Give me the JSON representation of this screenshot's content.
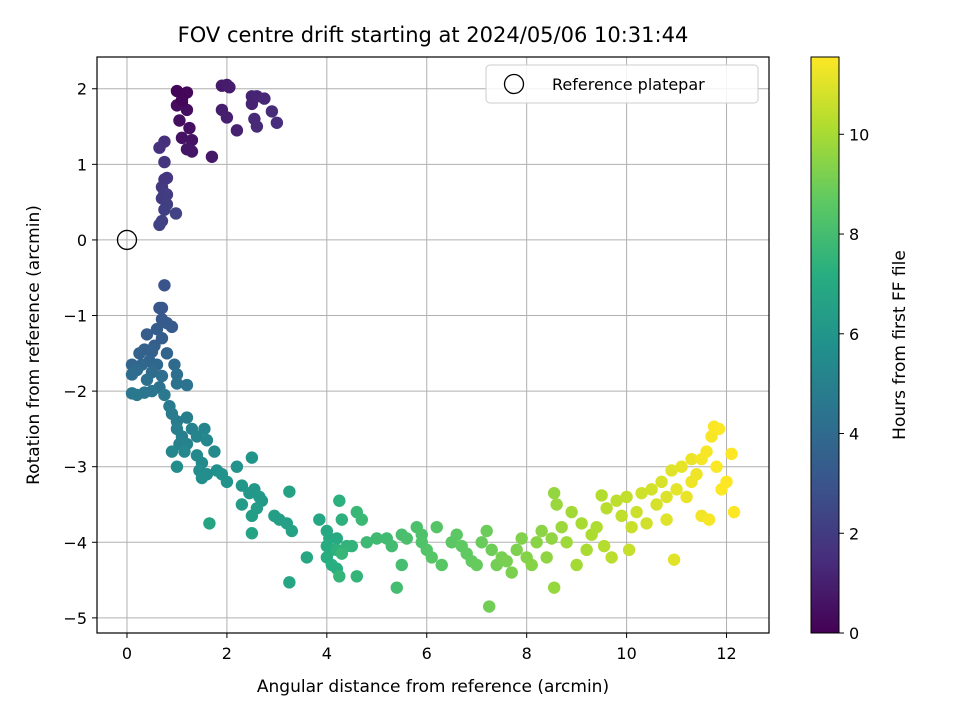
{
  "chart_data": {
    "type": "scatter",
    "title": "FOV centre drift starting at 2024/05/06 10:31:44",
    "xlabel": "Angular distance from reference (arcmin)",
    "ylabel": "Rotation from reference (arcmin)",
    "colorbar_label": "Hours from first FF file",
    "xlim": [
      -0.6,
      12.85
    ],
    "ylim": [
      -5.2,
      2.42
    ],
    "x_ticks": [
      0,
      2,
      4,
      6,
      8,
      10,
      12
    ],
    "y_ticks": [
      -5,
      -4,
      -3,
      -2,
      -1,
      0,
      1,
      2
    ],
    "x_tick_labels": [
      "0",
      "2",
      "4",
      "6",
      "8",
      "10",
      "12"
    ],
    "y_tick_labels": [
      "−5",
      "−4",
      "−3",
      "−2",
      "−1",
      "0",
      "1",
      "2"
    ],
    "colorbar_range": [
      0,
      11.55
    ],
    "colorbar_ticks": [
      0,
      2,
      4,
      6,
      8,
      10
    ],
    "colorbar_tick_labels": [
      "0",
      "2",
      "4",
      "6",
      "8",
      "10"
    ],
    "colormap": "viridis",
    "grid": true,
    "legend": {
      "placement": "top-right",
      "entries": [
        "Reference platepar"
      ]
    },
    "reference": {
      "name": "Reference platepar",
      "x": 0,
      "y": 0
    },
    "points": [
      [
        1.0,
        1.97,
        0.1
      ],
      [
        1.2,
        1.95,
        0.2
      ],
      [
        1.1,
        1.82,
        0.3
      ],
      [
        1.0,
        1.78,
        0.35
      ],
      [
        1.2,
        1.72,
        0.4
      ],
      [
        1.05,
        1.58,
        0.45
      ],
      [
        1.25,
        1.48,
        0.5
      ],
      [
        1.1,
        1.35,
        0.55
      ],
      [
        1.3,
        1.32,
        0.6
      ],
      [
        1.2,
        1.2,
        0.65
      ],
      [
        1.3,
        1.17,
        0.7
      ],
      [
        1.7,
        1.1,
        0.75
      ],
      [
        1.9,
        2.04,
        0.8
      ],
      [
        2.0,
        2.05,
        0.85
      ],
      [
        2.05,
        2.02,
        0.9
      ],
      [
        1.9,
        1.72,
        0.95
      ],
      [
        2.0,
        1.62,
        1.0
      ],
      [
        2.2,
        1.45,
        1.05
      ],
      [
        2.5,
        1.9,
        1.1
      ],
      [
        2.5,
        1.8,
        1.15
      ],
      [
        2.6,
        1.9,
        1.2
      ],
      [
        2.75,
        1.87,
        1.25
      ],
      [
        2.55,
        1.6,
        1.3
      ],
      [
        2.6,
        1.5,
        1.35
      ],
      [
        2.9,
        1.7,
        1.4
      ],
      [
        3.0,
        1.55,
        1.45
      ],
      [
        1.1,
        1.85,
        0.15
      ],
      [
        0.75,
        1.3,
        1.55
      ],
      [
        0.65,
        1.22,
        1.6
      ],
      [
        0.75,
        1.03,
        1.7
      ],
      [
        0.75,
        0.8,
        1.8
      ],
      [
        0.8,
        0.82,
        1.85
      ],
      [
        0.7,
        0.7,
        1.9
      ],
      [
        0.75,
        0.62,
        1.95
      ],
      [
        0.7,
        0.55,
        2.0
      ],
      [
        0.8,
        0.6,
        2.05
      ],
      [
        0.8,
        0.47,
        2.1
      ],
      [
        0.75,
        0.4,
        2.15
      ],
      [
        0.7,
        0.25,
        2.2
      ],
      [
        0.65,
        0.2,
        2.25
      ],
      [
        0.98,
        0.35,
        2.3
      ],
      [
        0.75,
        -0.6,
        3.0
      ],
      [
        0.65,
        -0.9,
        3.1
      ],
      [
        0.7,
        -0.9,
        3.15
      ],
      [
        0.7,
        -1.05,
        3.2
      ],
      [
        0.8,
        -1.1,
        3.25
      ],
      [
        0.9,
        -1.15,
        3.3
      ],
      [
        0.6,
        -1.18,
        3.35
      ],
      [
        0.4,
        -1.25,
        3.4
      ],
      [
        0.7,
        -1.3,
        3.45
      ],
      [
        0.55,
        -1.4,
        3.5
      ],
      [
        0.35,
        -1.45,
        3.55
      ],
      [
        0.5,
        -1.48,
        3.6
      ],
      [
        0.25,
        -1.5,
        3.65
      ],
      [
        0.8,
        -1.5,
        3.7
      ],
      [
        0.45,
        -1.6,
        3.75
      ],
      [
        0.1,
        -1.65,
        3.8
      ],
      [
        0.3,
        -1.65,
        3.85
      ],
      [
        0.6,
        -1.65,
        3.9
      ],
      [
        0.95,
        -1.65,
        3.95
      ],
      [
        0.2,
        -1.72,
        4.0
      ],
      [
        0.5,
        -1.75,
        4.05
      ],
      [
        0.1,
        -1.78,
        4.1
      ],
      [
        0.7,
        -1.8,
        4.15
      ],
      [
        1.0,
        -1.78,
        4.2
      ],
      [
        0.4,
        -1.85,
        4.25
      ],
      [
        0.65,
        -1.95,
        4.3
      ],
      [
        1.0,
        -1.9,
        4.35
      ],
      [
        1.2,
        -1.92,
        4.4
      ],
      [
        0.5,
        -2.0,
        4.45
      ],
      [
        0.35,
        -2.02,
        4.5
      ],
      [
        0.1,
        -2.03,
        4.55
      ],
      [
        0.2,
        -2.05,
        4.6
      ],
      [
        0.75,
        -2.05,
        4.65
      ],
      [
        0.85,
        -2.2,
        4.7
      ],
      [
        0.9,
        -2.3,
        4.75
      ],
      [
        1.0,
        -2.4,
        4.8
      ],
      [
        1.2,
        -2.35,
        4.85
      ],
      [
        1.0,
        -2.5,
        4.9
      ],
      [
        1.1,
        -2.6,
        4.95
      ],
      [
        1.3,
        -2.5,
        5.0
      ],
      [
        1.05,
        -2.7,
        5.05
      ],
      [
        1.2,
        -2.7,
        5.1
      ],
      [
        1.4,
        -2.6,
        5.15
      ],
      [
        1.55,
        -2.5,
        5.2
      ],
      [
        1.6,
        -2.65,
        5.25
      ],
      [
        0.9,
        -2.8,
        5.3
      ],
      [
        1.15,
        -2.8,
        5.35
      ],
      [
        1.4,
        -2.85,
        5.4
      ],
      [
        1.5,
        -2.95,
        5.45
      ],
      [
        1.75,
        -2.8,
        5.5
      ],
      [
        1.45,
        -3.05,
        5.55
      ],
      [
        1.6,
        -3.1,
        5.6
      ],
      [
        1.0,
        -3.0,
        5.65
      ],
      [
        1.5,
        -3.15,
        5.7
      ],
      [
        1.8,
        -3.05,
        5.75
      ],
      [
        1.9,
        -3.1,
        5.8
      ],
      [
        2.0,
        -3.2,
        5.85
      ],
      [
        2.2,
        -3.0,
        5.9
      ],
      [
        2.5,
        -2.88,
        5.95
      ],
      [
        2.3,
        -3.25,
        6.0
      ],
      [
        2.45,
        -3.35,
        6.05
      ],
      [
        2.55,
        -3.3,
        6.1
      ],
      [
        2.65,
        -3.4,
        6.15
      ],
      [
        2.7,
        -3.45,
        6.2
      ],
      [
        2.3,
        -3.5,
        6.25
      ],
      [
        2.6,
        -3.55,
        6.3
      ],
      [
        2.5,
        -3.65,
        6.35
      ],
      [
        2.95,
        -3.65,
        6.4
      ],
      [
        3.05,
        -3.7,
        6.45
      ],
      [
        3.2,
        -3.75,
        6.5
      ],
      [
        3.3,
        -3.85,
        6.55
      ],
      [
        3.25,
        -3.33,
        6.6
      ],
      [
        2.5,
        -3.88,
        6.65
      ],
      [
        1.65,
        -3.75,
        6.7
      ],
      [
        3.25,
        -4.53,
        6.75
      ],
      [
        3.6,
        -4.2,
        6.8
      ],
      [
        3.85,
        -3.7,
        6.85
      ],
      [
        4.0,
        -3.85,
        6.9
      ],
      [
        4.05,
        -3.95,
        6.95
      ],
      [
        4.2,
        -3.95,
        7.0
      ],
      [
        4.0,
        -4.05,
        7.05
      ],
      [
        4.1,
        -4.1,
        7.1
      ],
      [
        4.0,
        -4.2,
        7.15
      ],
      [
        4.1,
        -4.3,
        7.2
      ],
      [
        4.2,
        -4.35,
        7.25
      ],
      [
        4.25,
        -3.45,
        7.3
      ],
      [
        4.3,
        -3.7,
        7.35
      ],
      [
        4.2,
        -4.1,
        7.4
      ],
      [
        4.4,
        -4.05,
        7.45
      ],
      [
        4.5,
        -4.05,
        7.5
      ],
      [
        4.6,
        -4.45,
        7.55
      ],
      [
        4.25,
        -4.45,
        7.6
      ],
      [
        4.3,
        -4.15,
        7.65
      ],
      [
        4.6,
        -3.6,
        7.7
      ],
      [
        4.7,
        -3.7,
        7.75
      ],
      [
        4.8,
        -4.0,
        7.8
      ],
      [
        5.0,
        -3.95,
        7.85
      ],
      [
        5.2,
        -3.95,
        7.9
      ],
      [
        5.3,
        -4.05,
        7.95
      ],
      [
        5.4,
        -4.6,
        8.0
      ],
      [
        5.5,
        -4.3,
        8.05
      ],
      [
        5.5,
        -3.9,
        8.1
      ],
      [
        5.6,
        -3.95,
        8.15
      ],
      [
        5.8,
        -3.8,
        8.2
      ],
      [
        5.9,
        -3.9,
        8.25
      ],
      [
        5.9,
        -4.0,
        8.3
      ],
      [
        6.0,
        -4.1,
        8.35
      ],
      [
        6.2,
        -3.8,
        8.4
      ],
      [
        6.1,
        -4.2,
        8.45
      ],
      [
        6.3,
        -4.3,
        8.5
      ],
      [
        6.5,
        -4.0,
        8.55
      ],
      [
        6.6,
        -3.9,
        8.6
      ],
      [
        6.7,
        -4.05,
        8.65
      ],
      [
        6.8,
        -4.15,
        8.7
      ],
      [
        6.9,
        -4.25,
        8.75
      ],
      [
        7.0,
        -4.3,
        8.8
      ],
      [
        7.1,
        -4.0,
        8.85
      ],
      [
        7.2,
        -3.85,
        8.9
      ],
      [
        7.3,
        -4.1,
        8.95
      ],
      [
        7.25,
        -4.85,
        9.0
      ],
      [
        7.4,
        -4.3,
        9.05
      ],
      [
        7.5,
        -4.2,
        9.1
      ],
      [
        7.6,
        -4.25,
        9.15
      ],
      [
        7.7,
        -4.4,
        9.2
      ],
      [
        7.8,
        -4.1,
        9.25
      ],
      [
        7.9,
        -3.95,
        9.3
      ],
      [
        8.0,
        -4.2,
        9.35
      ],
      [
        8.1,
        -4.3,
        9.4
      ],
      [
        8.2,
        -4.0,
        9.45
      ],
      [
        8.3,
        -3.85,
        9.5
      ],
      [
        8.4,
        -4.2,
        9.55
      ],
      [
        8.5,
        -3.95,
        9.6
      ],
      [
        8.55,
        -3.35,
        9.65
      ],
      [
        8.55,
        -4.6,
        9.7
      ],
      [
        8.6,
        -3.5,
        9.75
      ],
      [
        8.7,
        -3.8,
        9.8
      ],
      [
        8.8,
        -4.0,
        9.85
      ],
      [
        8.9,
        -3.6,
        9.9
      ],
      [
        9.0,
        -4.3,
        9.95
      ],
      [
        9.1,
        -3.75,
        10.0
      ],
      [
        9.2,
        -4.1,
        10.05
      ],
      [
        9.3,
        -3.9,
        10.1
      ],
      [
        9.4,
        -3.8,
        10.15
      ],
      [
        9.5,
        -3.38,
        10.2
      ],
      [
        9.55,
        -4.05,
        10.25
      ],
      [
        9.6,
        -3.55,
        10.3
      ],
      [
        9.7,
        -4.2,
        10.35
      ],
      [
        9.8,
        -3.45,
        10.4
      ],
      [
        9.9,
        -3.65,
        10.45
      ],
      [
        10.0,
        -3.4,
        10.5
      ],
      [
        10.05,
        -4.1,
        10.55
      ],
      [
        10.1,
        -3.8,
        10.6
      ],
      [
        10.2,
        -3.6,
        10.65
      ],
      [
        10.3,
        -3.35,
        10.7
      ],
      [
        10.4,
        -3.75,
        10.75
      ],
      [
        10.5,
        -3.3,
        10.8
      ],
      [
        10.6,
        -3.5,
        10.85
      ],
      [
        10.7,
        -3.2,
        10.9
      ],
      [
        10.8,
        -3.4,
        10.95
      ],
      [
        10.9,
        -3.05,
        11.0
      ],
      [
        10.95,
        -4.23,
        11.05
      ],
      [
        11.0,
        -3.3,
        11.1
      ],
      [
        11.1,
        -3.0,
        11.15
      ],
      [
        11.2,
        -3.4,
        11.2
      ],
      [
        11.3,
        -2.9,
        11.25
      ],
      [
        11.4,
        -3.1,
        11.3
      ],
      [
        11.5,
        -3.65,
        11.35
      ],
      [
        11.6,
        -2.8,
        11.4
      ],
      [
        11.65,
        -3.7,
        11.42
      ],
      [
        11.7,
        -2.6,
        11.45
      ],
      [
        11.75,
        -2.47,
        11.48
      ],
      [
        11.8,
        -3.0,
        11.5
      ],
      [
        11.85,
        -2.5,
        11.52
      ],
      [
        11.9,
        -3.3,
        11.54
      ],
      [
        12.0,
        -3.2,
        11.55
      ],
      [
        12.1,
        -2.83,
        11.55
      ],
      [
        12.15,
        -3.6,
        11.55
      ],
      [
        11.5,
        -2.9,
        11.4
      ],
      [
        11.3,
        -3.2,
        11.3
      ],
      [
        10.8,
        -3.7,
        11.0
      ]
    ]
  }
}
